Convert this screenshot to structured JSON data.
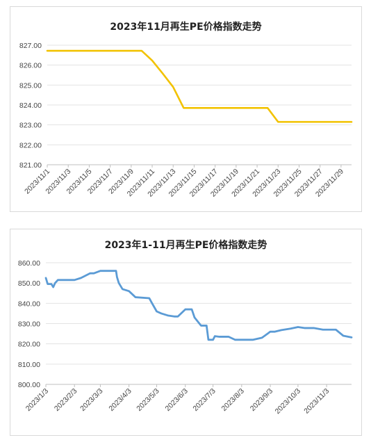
{
  "chart_data": [
    {
      "type": "line",
      "title": "2023年11月再生PE价格指数走势",
      "xlabel": "",
      "ylabel": "",
      "ylim": [
        821.0,
        827.0
      ],
      "yticks": [
        "827.00",
        "826.00",
        "825.00",
        "824.00",
        "823.00",
        "822.00",
        "821.00"
      ],
      "ytick_values": [
        827,
        826,
        825,
        824,
        823,
        822,
        821
      ],
      "xticks": [
        "2023/11/1",
        "2023/11/3",
        "2023/11/5",
        "2023/11/7",
        "2023/11/9",
        "2023/11/11",
        "2023/11/13",
        "2023/11/15",
        "2023/11/17",
        "2023/11/19",
        "2023/11/21",
        "2023/11/23",
        "2023/11/25",
        "2023/11/27",
        "2023/11/29"
      ],
      "grid": true,
      "legend": "none",
      "color": "#f2c200",
      "x": [
        "2023/11/1",
        "2023/11/2",
        "2023/11/3",
        "2023/11/4",
        "2023/11/5",
        "2023/11/6",
        "2023/11/7",
        "2023/11/8",
        "2023/11/9",
        "2023/11/10",
        "2023/11/11",
        "2023/11/12",
        "2023/11/13",
        "2023/11/14",
        "2023/11/15",
        "2023/11/16",
        "2023/11/17",
        "2023/11/18",
        "2023/11/19",
        "2023/11/20",
        "2023/11/21",
        "2023/11/22",
        "2023/11/23",
        "2023/11/24",
        "2023/11/25",
        "2023/11/26",
        "2023/11/27",
        "2023/11/28",
        "2023/11/29",
        "2023/11/30"
      ],
      "values": [
        826.72,
        826.72,
        826.72,
        826.72,
        826.72,
        826.72,
        826.72,
        826.72,
        826.72,
        826.72,
        826.23,
        825.58,
        824.9,
        823.85,
        823.85,
        823.85,
        823.85,
        823.85,
        823.85,
        823.85,
        823.85,
        823.85,
        823.15,
        823.15,
        823.15,
        823.15,
        823.15,
        823.15,
        823.15,
        823.15
      ]
    },
    {
      "type": "line",
      "title": "2023年1-11月再生PE价格指数走势",
      "xlabel": "",
      "ylabel": "",
      "ylim": [
        800.0,
        860.0
      ],
      "yticks": [
        "860.00",
        "850.00",
        "840.00",
        "830.00",
        "820.00",
        "810.00",
        "800.00"
      ],
      "ytick_values": [
        860,
        850,
        840,
        830,
        820,
        810,
        800
      ],
      "xticks": [
        "2023/1/3",
        "2023/2/3",
        "2023/3/3",
        "2023/4/3",
        "2023/5/3",
        "2023/6/3",
        "2023/7/3",
        "2023/8/3",
        "2023/9/3",
        "2023/10/3",
        "2023/11/3"
      ],
      "grid": true,
      "legend": "none",
      "color": "#5b9bd5",
      "x": [
        "2023/1/3",
        "2023/1/5",
        "2023/1/9",
        "2023/1/11",
        "2023/1/13",
        "2023/1/16",
        "2023/1/30",
        "2023/2/3",
        "2023/2/10",
        "2023/2/20",
        "2023/2/24",
        "2023/3/3",
        "2023/3/20",
        "2023/3/21",
        "2023/3/23",
        "2023/3/27",
        "2023/4/3",
        "2023/4/10",
        "2023/4/25",
        "2023/4/28",
        "2023/5/3",
        "2023/5/8",
        "2023/5/15",
        "2023/5/22",
        "2023/5/26",
        "2023/6/3",
        "2023/6/10",
        "2023/6/13",
        "2023/6/20",
        "2023/6/26",
        "2023/6/28",
        "2023/7/3",
        "2023/7/5",
        "2023/7/10",
        "2023/7/20",
        "2023/7/27",
        "2023/8/3",
        "2023/8/15",
        "2023/8/25",
        "2023/8/31",
        "2023/9/3",
        "2023/9/8",
        "2023/9/15",
        "2023/9/25",
        "2023/10/3",
        "2023/10/10",
        "2023/10/20",
        "2023/10/30",
        "2023/11/3",
        "2023/11/13",
        "2023/11/21",
        "2023/11/30"
      ],
      "values": [
        852.5,
        849.5,
        849.5,
        848.0,
        850.0,
        851.5,
        851.5,
        851.5,
        852.5,
        854.8,
        854.8,
        856.0,
        856.0,
        853.0,
        850.0,
        847.0,
        846.0,
        843.0,
        842.5,
        840.0,
        836.0,
        835.0,
        834.0,
        833.5,
        833.5,
        837.0,
        837.0,
        833.0,
        829.0,
        829.0,
        822.0,
        822.0,
        823.8,
        823.5,
        823.5,
        822.0,
        822.0,
        822.0,
        823.0,
        825.0,
        826.0,
        826.0,
        826.8,
        827.5,
        828.3,
        827.8,
        827.8,
        827.0,
        827.0,
        827.0,
        824.0,
        823.2
      ]
    }
  ]
}
